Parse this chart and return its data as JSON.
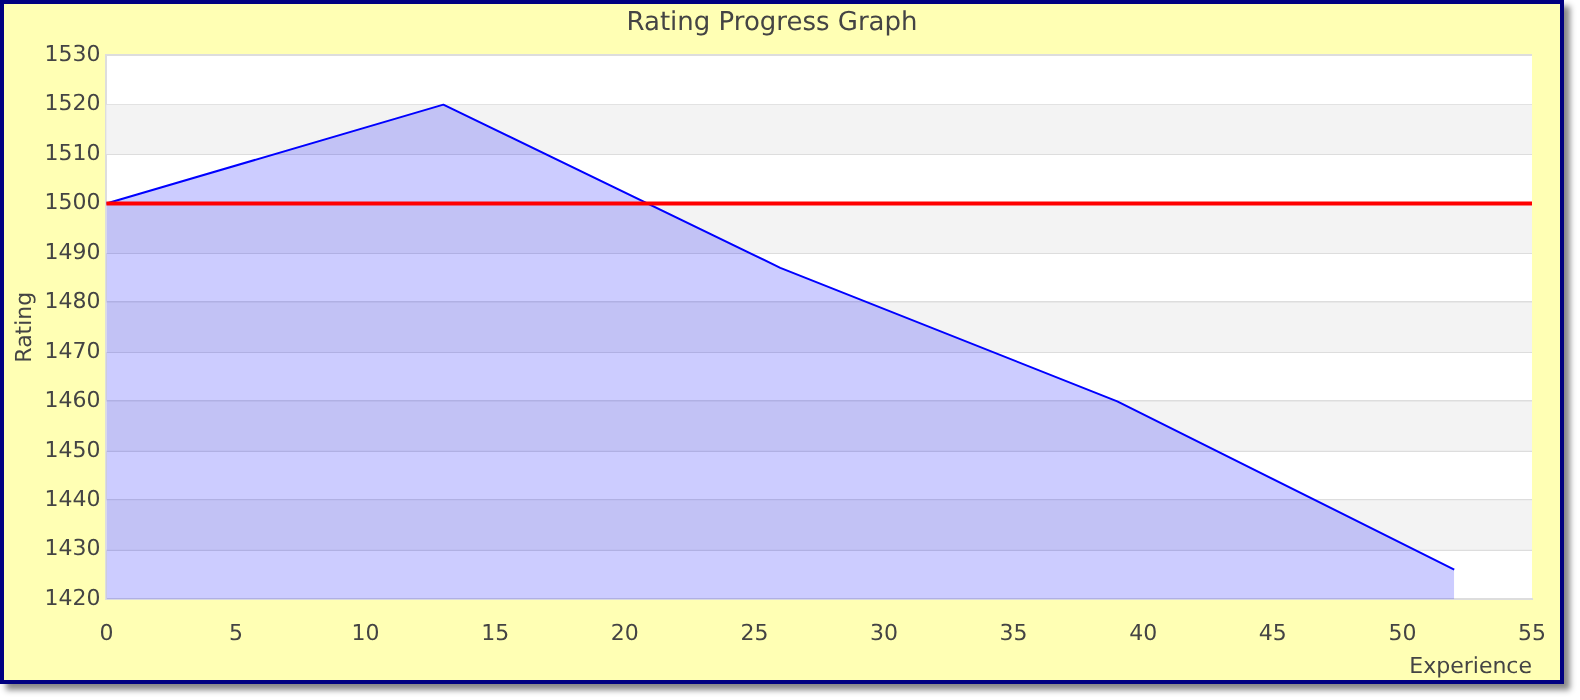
{
  "chart_data": {
    "type": "area",
    "title": "Rating Progress Graph",
    "xlabel": "Experience",
    "ylabel": "Rating",
    "x": [
      0,
      13,
      26,
      39,
      52
    ],
    "series": [
      {
        "color": "#0000ff",
        "values": [
          1500,
          1520,
          1487,
          1460,
          1426
        ]
      }
    ],
    "xlim": [
      0,
      55
    ],
    "xticks": [
      0,
      5,
      10,
      15,
      20,
      25,
      30,
      35,
      40,
      45,
      50,
      55
    ],
    "ylim": [
      1420,
      1530
    ],
    "yticks": [
      1420,
      1430,
      1440,
      1450,
      1460,
      1470,
      1480,
      1490,
      1500,
      1510,
      1520,
      1530
    ],
    "ref_lines": [
      {
        "axis": "y",
        "value": 1500,
        "color": "#ff0000"
      }
    ],
    "grid": "y",
    "legend": false,
    "marker": "none"
  }
}
